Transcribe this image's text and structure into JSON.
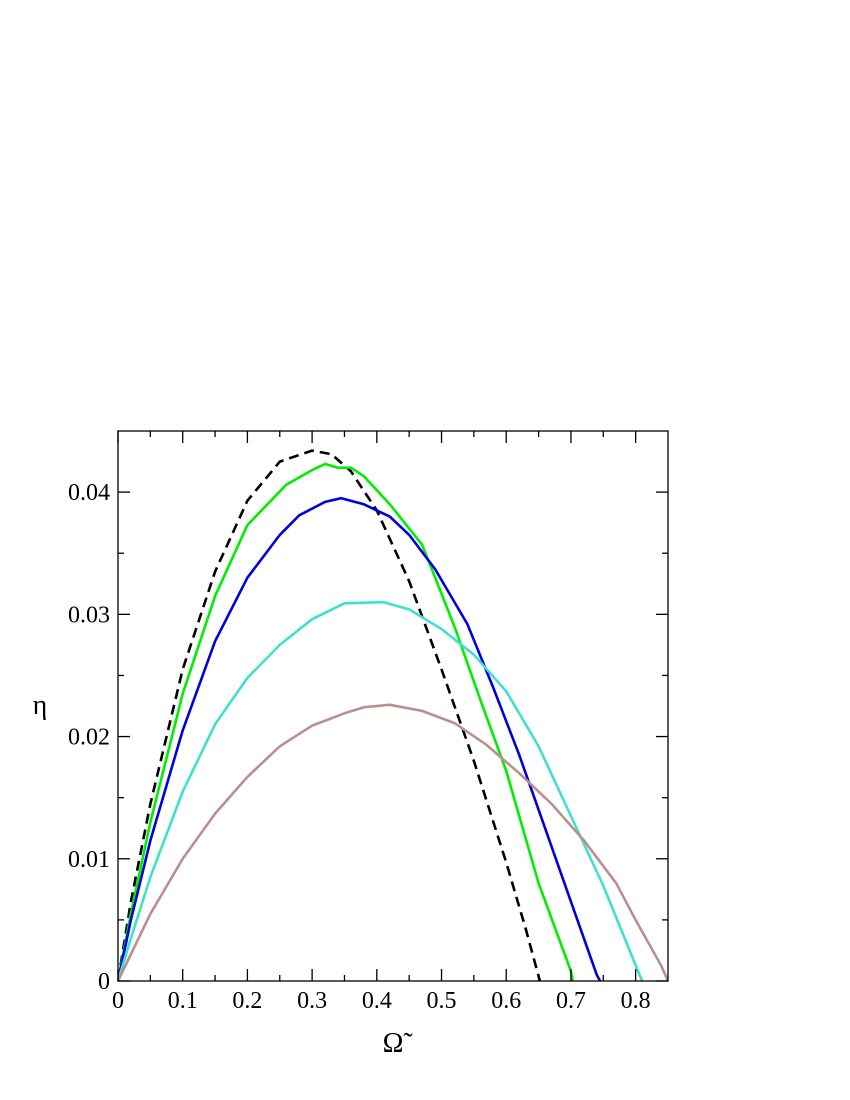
{
  "chart_data": {
    "type": "line",
    "title": "",
    "xlabel": "Ω̃",
    "ylabel": "η",
    "xlim": [
      0,
      0.85
    ],
    "ylim": [
      0,
      0.045
    ],
    "grid": false,
    "legend": "none",
    "x_ticks": [
      {
        "value": 0,
        "label": "0"
      },
      {
        "value": 0.1,
        "label": "0.1"
      },
      {
        "value": 0.2,
        "label": "0.2"
      },
      {
        "value": 0.3,
        "label": "0.3"
      },
      {
        "value": 0.4,
        "label": "0.4"
      },
      {
        "value": 0.5,
        "label": "0.5"
      },
      {
        "value": 0.6,
        "label": "0.6"
      },
      {
        "value": 0.7,
        "label": "0.7"
      },
      {
        "value": 0.8,
        "label": "0.8"
      }
    ],
    "x_minor_ticks": [
      0.05,
      0.15,
      0.25,
      0.35,
      0.45,
      0.55,
      0.65,
      0.75
    ],
    "y_ticks": [
      {
        "value": 0,
        "label": "0"
      },
      {
        "value": 0.01,
        "label": "0.01"
      },
      {
        "value": 0.02,
        "label": "0.02"
      },
      {
        "value": 0.03,
        "label": "0.03"
      },
      {
        "value": 0.04,
        "label": "0.04"
      }
    ],
    "y_minor_ticks": [
      0.005,
      0.015,
      0.025,
      0.035
    ],
    "series": [
      {
        "color": "#000000",
        "dash": true,
        "points": [
          [
            0,
            0
          ],
          [
            0.02,
            0.0065
          ],
          [
            0.05,
            0.0145
          ],
          [
            0.1,
            0.0255
          ],
          [
            0.15,
            0.0335
          ],
          [
            0.2,
            0.0393
          ],
          [
            0.25,
            0.0425
          ],
          [
            0.3,
            0.0434
          ],
          [
            0.33,
            0.0431
          ],
          [
            0.36,
            0.0417
          ],
          [
            0.4,
            0.0385
          ],
          [
            0.45,
            0.0327
          ],
          [
            0.5,
            0.0255
          ],
          [
            0.55,
            0.018
          ],
          [
            0.6,
            0.0097
          ],
          [
            0.63,
            0.0043
          ],
          [
            0.652,
            0.0
          ]
        ]
      },
      {
        "color": "#00ee00",
        "dash": false,
        "points": [
          [
            0,
            0
          ],
          [
            0.02,
            0.0055
          ],
          [
            0.05,
            0.013
          ],
          [
            0.1,
            0.0235
          ],
          [
            0.15,
            0.0315
          ],
          [
            0.2,
            0.0373
          ],
          [
            0.26,
            0.0406
          ],
          [
            0.3,
            0.0418
          ],
          [
            0.32,
            0.0423
          ],
          [
            0.34,
            0.042
          ],
          [
            0.36,
            0.042
          ],
          [
            0.38,
            0.0413
          ],
          [
            0.42,
            0.039
          ],
          [
            0.47,
            0.0357
          ],
          [
            0.52,
            0.029
          ],
          [
            0.56,
            0.023
          ],
          [
            0.6,
            0.0172
          ],
          [
            0.65,
            0.008
          ],
          [
            0.7,
            0.0008
          ],
          [
            0.703,
            0.0
          ]
        ]
      },
      {
        "color": "#0000dd",
        "dash": false,
        "points": [
          [
            0,
            0
          ],
          [
            0.02,
            0.005
          ],
          [
            0.05,
            0.0115
          ],
          [
            0.1,
            0.0205
          ],
          [
            0.15,
            0.0278
          ],
          [
            0.2,
            0.033
          ],
          [
            0.25,
            0.0365
          ],
          [
            0.28,
            0.0381
          ],
          [
            0.32,
            0.0392
          ],
          [
            0.345,
            0.0395
          ],
          [
            0.38,
            0.039
          ],
          [
            0.42,
            0.038
          ],
          [
            0.45,
            0.0365
          ],
          [
            0.49,
            0.0337
          ],
          [
            0.54,
            0.0292
          ],
          [
            0.58,
            0.024
          ],
          [
            0.62,
            0.0185
          ],
          [
            0.66,
            0.0125
          ],
          [
            0.7,
            0.0065
          ],
          [
            0.74,
            0.0005
          ],
          [
            0.745,
            0.0
          ]
        ]
      },
      {
        "color": "#40e0d0",
        "dash": false,
        "points": [
          [
            0,
            0
          ],
          [
            0.02,
            0.0035
          ],
          [
            0.05,
            0.0085
          ],
          [
            0.1,
            0.0155
          ],
          [
            0.15,
            0.021
          ],
          [
            0.2,
            0.0248
          ],
          [
            0.25,
            0.0275
          ],
          [
            0.3,
            0.0296
          ],
          [
            0.35,
            0.0309
          ],
          [
            0.41,
            0.031
          ],
          [
            0.45,
            0.0304
          ],
          [
            0.5,
            0.0288
          ],
          [
            0.55,
            0.0267
          ],
          [
            0.6,
            0.0237
          ],
          [
            0.65,
            0.0192
          ],
          [
            0.7,
            0.0135
          ],
          [
            0.75,
            0.0078
          ],
          [
            0.8,
            0.0013
          ],
          [
            0.81,
            0.0
          ]
        ]
      },
      {
        "color": "#bc8f8f",
        "dash": false,
        "points": [
          [
            0,
            0
          ],
          [
            0.05,
            0.0055
          ],
          [
            0.1,
            0.01
          ],
          [
            0.15,
            0.0137
          ],
          [
            0.2,
            0.0167
          ],
          [
            0.25,
            0.0192
          ],
          [
            0.3,
            0.0209
          ],
          [
            0.35,
            0.0219
          ],
          [
            0.38,
            0.0224
          ],
          [
            0.42,
            0.0226
          ],
          [
            0.47,
            0.0221
          ],
          [
            0.52,
            0.0211
          ],
          [
            0.57,
            0.0193
          ],
          [
            0.62,
            0.017
          ],
          [
            0.67,
            0.0145
          ],
          [
            0.72,
            0.0115
          ],
          [
            0.77,
            0.008
          ],
          [
            0.8,
            0.005
          ],
          [
            0.84,
            0.0012
          ],
          [
            0.85,
            0.0
          ]
        ]
      }
    ]
  }
}
